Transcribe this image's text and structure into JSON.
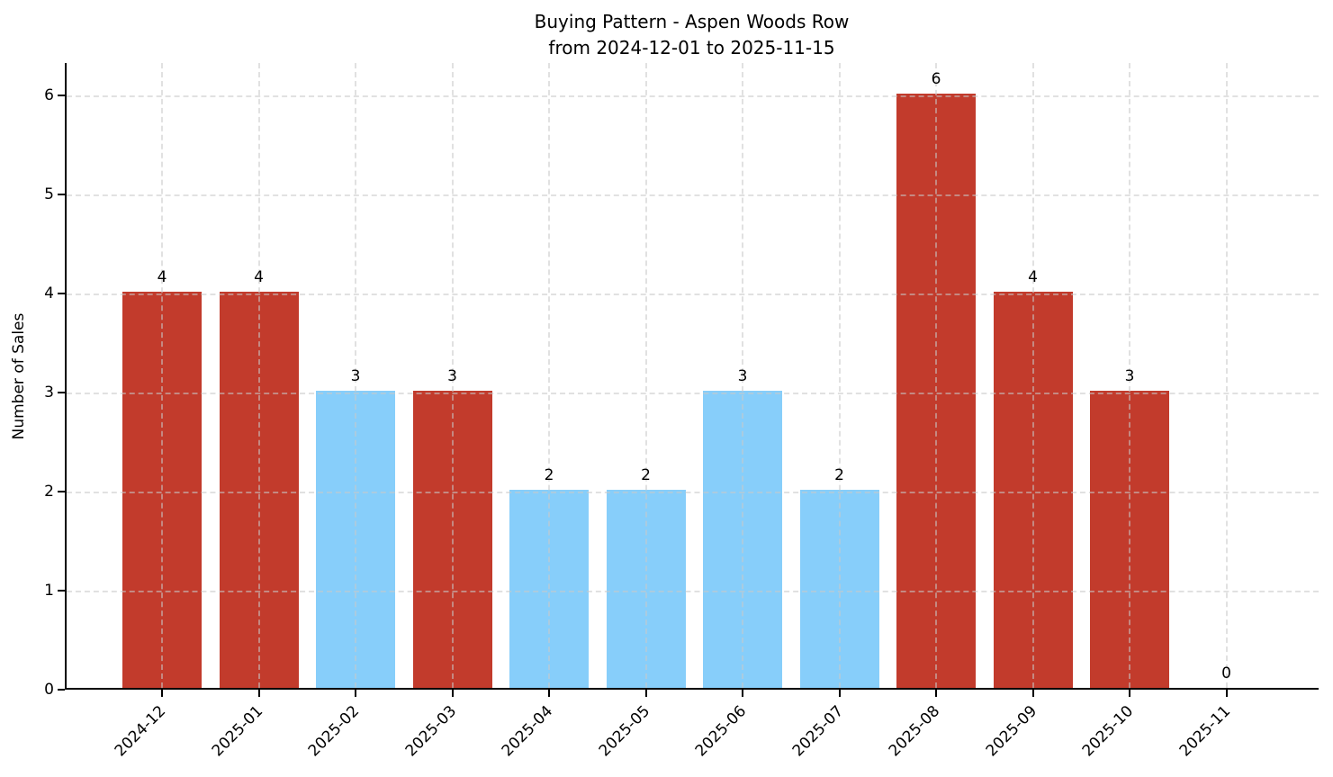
{
  "chart_data": {
    "type": "bar",
    "title": "Buying Pattern - Aspen Woods Row\nfrom 2024-12-01 to 2025-11-15",
    "title_lines": [
      "Buying Pattern - Aspen Woods Row",
      "from 2024-12-01 to 2025-11-15"
    ],
    "xlabel": "",
    "ylabel": "Number of Sales",
    "categories": [
      "2024-12",
      "2025-01",
      "2025-02",
      "2025-03",
      "2025-04",
      "2025-05",
      "2025-06",
      "2025-07",
      "2025-08",
      "2025-09",
      "2025-10",
      "2025-11"
    ],
    "values": [
      4,
      4,
      3,
      3,
      2,
      2,
      3,
      2,
      6,
      4,
      3,
      0
    ],
    "value_labels": [
      "4",
      "4",
      "3",
      "3",
      "2",
      "2",
      "3",
      "2",
      "6",
      "4",
      "3",
      "0"
    ],
    "bar_colors": [
      "#c23b2c",
      "#c23b2c",
      "#87cefa",
      "#c23b2c",
      "#87cefa",
      "#87cefa",
      "#87cefa",
      "#87cefa",
      "#c23b2c",
      "#c23b2c",
      "#c23b2c",
      "#c23b2c"
    ],
    "palette": {
      "red": "#c23b2c",
      "blue": "#87cefa"
    },
    "yticks": [
      "0",
      "1",
      "2",
      "3",
      "4",
      "5",
      "6"
    ],
    "ylim": [
      0,
      6.33
    ],
    "x_tick_rotation_deg": 45,
    "grid": "dashed, both axes, drawn above bars",
    "grid_color": "#c9c9c9",
    "axis_color": "#000000",
    "background_color": "#ffffff",
    "legend": "none"
  }
}
